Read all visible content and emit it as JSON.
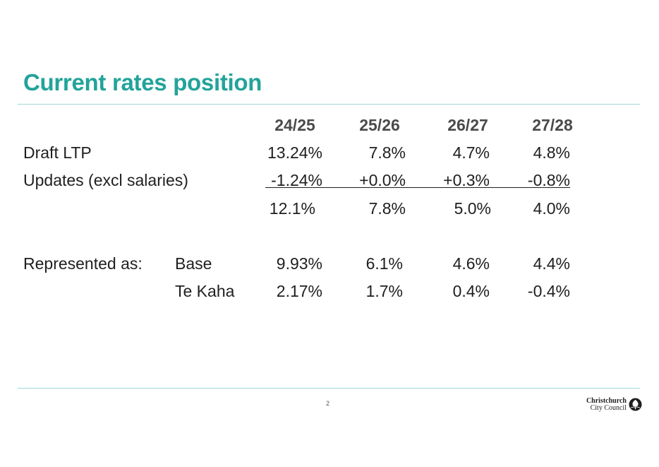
{
  "slide": {
    "title": "Current rates position",
    "page_number": "2"
  },
  "table": {
    "headers": [
      "24/25",
      "25/26",
      "26/27",
      "27/28"
    ],
    "rows": [
      {
        "label": "Draft LTP",
        "values": [
          "13.24%",
          "7.8%",
          "4.7%",
          "4.8%"
        ]
      },
      {
        "label": "Updates (excl salaries)",
        "values": [
          "-1.24%",
          "+0.0%",
          "+0.3%",
          "-0.8%"
        ]
      },
      {
        "label": "",
        "values": [
          "12.1%",
          "7.8%",
          "5.0%",
          "4.0%"
        ]
      }
    ],
    "represented": {
      "label": "Represented as:",
      "rows": [
        {
          "label": "Base",
          "values": [
            "9.93%",
            "6.1%",
            "4.6%",
            "4.4%"
          ]
        },
        {
          "label": "Te Kaha",
          "values": [
            "2.17%",
            "1.7%",
            "0.4%",
            "-0.4%"
          ]
        }
      ]
    }
  },
  "logo": {
    "line1": "Christchurch",
    "line2": "City Council",
    "icon": "council-tree-icon"
  },
  "colors": {
    "accent": "#22a39a",
    "rule": "#9fd8d2"
  }
}
